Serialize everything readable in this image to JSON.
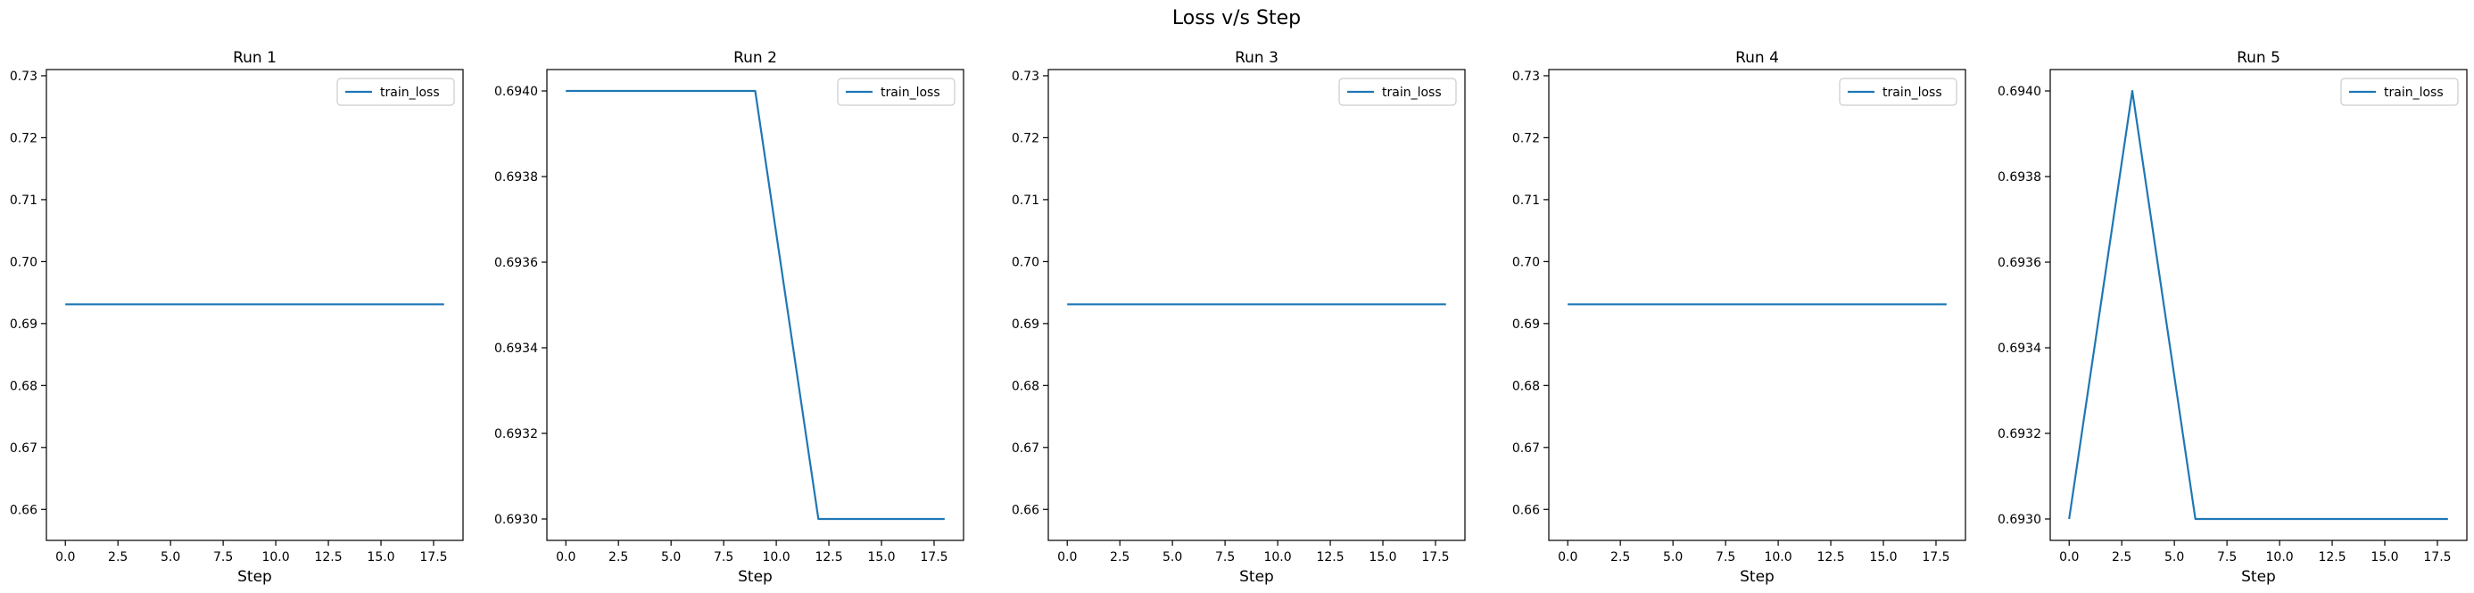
{
  "figure_title": "Loss v/s Step",
  "colors": {
    "train_loss": "#1f77b4"
  },
  "chart_data": [
    {
      "type": "line",
      "title": "Run 1",
      "xlabel": "Step",
      "ylabel": "",
      "xlim": [
        -0.9,
        18.9
      ],
      "ylim": [
        0.655,
        0.731
      ],
      "xticks": [
        0,
        2.5,
        5,
        7.5,
        10,
        12.5,
        15,
        17.5
      ],
      "xtick_labels": [
        "0.0",
        "2.5",
        "5.0",
        "7.5",
        "10.0",
        "12.5",
        "15.0",
        "17.5"
      ],
      "yticks": [
        0.66,
        0.67,
        0.68,
        0.69,
        0.7,
        0.71,
        0.72,
        0.73
      ],
      "ytick_labels": [
        "0.66",
        "0.67",
        "0.68",
        "0.69",
        "0.70",
        "0.71",
        "0.72",
        "0.73"
      ],
      "legend": "top-right",
      "grid": false,
      "series": [
        {
          "name": "train_loss",
          "x": [
            0,
            3,
            6,
            9,
            12,
            15,
            18
          ],
          "y": [
            0.6931,
            0.6931,
            0.6931,
            0.6931,
            0.6931,
            0.6931,
            0.6931
          ]
        }
      ]
    },
    {
      "type": "line",
      "title": "Run 2",
      "xlabel": "Step",
      "ylabel": "",
      "xlim": [
        -0.9,
        18.9
      ],
      "ylim": [
        0.69295,
        0.69405
      ],
      "xticks": [
        0,
        2.5,
        5,
        7.5,
        10,
        12.5,
        15,
        17.5
      ],
      "xtick_labels": [
        "0.0",
        "2.5",
        "5.0",
        "7.5",
        "10.0",
        "12.5",
        "15.0",
        "17.5"
      ],
      "yticks": [
        0.693,
        0.6932,
        0.6934,
        0.6936,
        0.6938,
        0.694
      ],
      "ytick_labels": [
        "0.6930",
        "0.6932",
        "0.6934",
        "0.6936",
        "0.6938",
        "0.6940"
      ],
      "legend": "top-right",
      "grid": false,
      "series": [
        {
          "name": "train_loss",
          "x": [
            0,
            3,
            6,
            9,
            12,
            15,
            18
          ],
          "y": [
            0.694,
            0.694,
            0.694,
            0.694,
            0.693,
            0.693,
            0.693
          ]
        }
      ]
    },
    {
      "type": "line",
      "title": "Run 3",
      "xlabel": "Step",
      "ylabel": "",
      "xlim": [
        -0.9,
        18.9
      ],
      "ylim": [
        0.655,
        0.731
      ],
      "xticks": [
        0,
        2.5,
        5,
        7.5,
        10,
        12.5,
        15,
        17.5
      ],
      "xtick_labels": [
        "0.0",
        "2.5",
        "5.0",
        "7.5",
        "10.0",
        "12.5",
        "15.0",
        "17.5"
      ],
      "yticks": [
        0.66,
        0.67,
        0.68,
        0.69,
        0.7,
        0.71,
        0.72,
        0.73
      ],
      "ytick_labels": [
        "0.66",
        "0.67",
        "0.68",
        "0.69",
        "0.70",
        "0.71",
        "0.72",
        "0.73"
      ],
      "legend": "top-right",
      "grid": false,
      "series": [
        {
          "name": "train_loss",
          "x": [
            0,
            3,
            6,
            9,
            12,
            15,
            18
          ],
          "y": [
            0.6931,
            0.6931,
            0.6931,
            0.6931,
            0.6931,
            0.6931,
            0.6931
          ]
        }
      ]
    },
    {
      "type": "line",
      "title": "Run 4",
      "xlabel": "Step",
      "ylabel": "",
      "xlim": [
        -0.9,
        18.9
      ],
      "ylim": [
        0.655,
        0.731
      ],
      "xticks": [
        0,
        2.5,
        5,
        7.5,
        10,
        12.5,
        15,
        17.5
      ],
      "xtick_labels": [
        "0.0",
        "2.5",
        "5.0",
        "7.5",
        "10.0",
        "12.5",
        "15.0",
        "17.5"
      ],
      "yticks": [
        0.66,
        0.67,
        0.68,
        0.69,
        0.7,
        0.71,
        0.72,
        0.73
      ],
      "ytick_labels": [
        "0.66",
        "0.67",
        "0.68",
        "0.69",
        "0.70",
        "0.71",
        "0.72",
        "0.73"
      ],
      "legend": "top-right",
      "grid": false,
      "series": [
        {
          "name": "train_loss",
          "x": [
            0,
            3,
            6,
            9,
            12,
            15,
            18
          ],
          "y": [
            0.6931,
            0.6931,
            0.6931,
            0.6931,
            0.6931,
            0.6931,
            0.6931
          ]
        }
      ]
    },
    {
      "type": "line",
      "title": "Run 5",
      "xlabel": "Step",
      "ylabel": "",
      "xlim": [
        -0.9,
        18.9
      ],
      "ylim": [
        0.69295,
        0.69405
      ],
      "xticks": [
        0,
        2.5,
        5,
        7.5,
        10,
        12.5,
        15,
        17.5
      ],
      "xtick_labels": [
        "0.0",
        "2.5",
        "5.0",
        "7.5",
        "10.0",
        "12.5",
        "15.0",
        "17.5"
      ],
      "yticks": [
        0.693,
        0.6932,
        0.6934,
        0.6936,
        0.6938,
        0.694
      ],
      "ytick_labels": [
        "0.6930",
        "0.6932",
        "0.6934",
        "0.6936",
        "0.6938",
        "0.6940"
      ],
      "legend": "top-right",
      "grid": false,
      "series": [
        {
          "name": "train_loss",
          "x": [
            0,
            3,
            6,
            9,
            12,
            15,
            18
          ],
          "y": [
            0.693,
            0.694,
            0.693,
            0.693,
            0.693,
            0.693,
            0.693
          ]
        }
      ]
    }
  ]
}
